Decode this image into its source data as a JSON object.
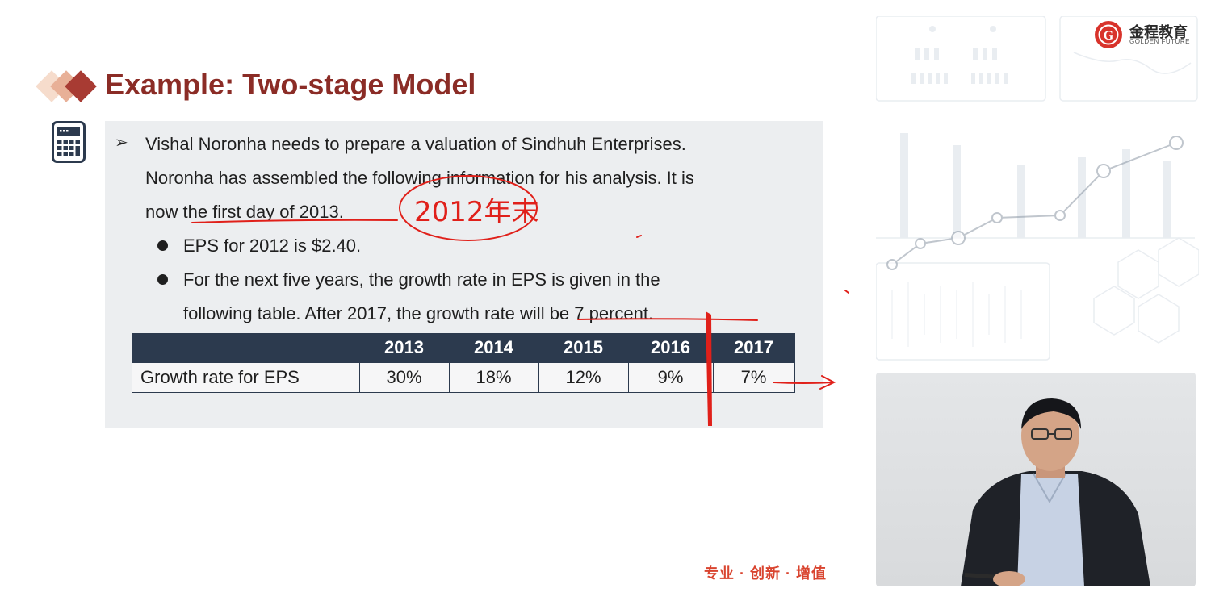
{
  "title": "Example: Two-stage Model",
  "paragraph_lines": [
    "Vishal Noronha needs to prepare a valuation of Sindhuh Enterprises.",
    "Noronha has assembled the following information for his analysis. It is",
    "now the first day of 2013."
  ],
  "bullets": [
    "EPS for 2012 is $2.40.",
    "For the next five years, the growth rate in EPS is given in the",
    "following table. After 2017, the growth rate will be 7 percent."
  ],
  "table": {
    "headers": [
      "",
      "2013",
      "2014",
      "2015",
      "2016",
      "2017"
    ],
    "row_label": "Growth rate for EPS",
    "values": [
      "30%",
      "18%",
      "12%",
      "9%",
      "7%"
    ]
  },
  "annotation_text": "2012年末",
  "logo": {
    "name": "金程教育",
    "sub": "GOLDEN FUTURE"
  },
  "slogan": "专业 · 创新 · 增值",
  "colors": {
    "title": "#8b2c26",
    "table_header": "#2c3a4e",
    "annotation": "#e0201a",
    "slogan": "#d9442f"
  }
}
